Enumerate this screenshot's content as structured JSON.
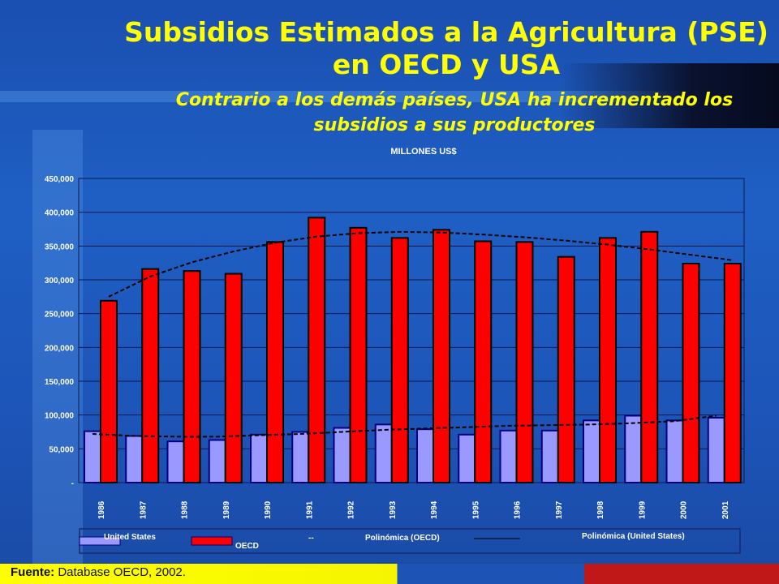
{
  "slide": {
    "title_line1": "Subsidios Estimados a la Agricultura (PSE)",
    "title_line2": "en OECD y USA",
    "subtitle_line1": "Contrario a los demás países, USA ha incrementado los",
    "subtitle_line2": "subsidios a sus productores",
    "source_label": "Fuente:",
    "source_text": " Database OECD, 2002."
  },
  "colors": {
    "us_bar": "#9999ff",
    "oecd_bar": "#ff0000",
    "bar_outline": "#000080",
    "trend_line": "#000000",
    "title": "#ffff00"
  },
  "chart_data": {
    "type": "bar",
    "title": "MILLONES US$",
    "xlabel": "",
    "ylabel": "",
    "categories": [
      "1986",
      "1987",
      "1988",
      "1989",
      "1990",
      "1991",
      "1992",
      "1993",
      "1994",
      "1995",
      "1996",
      "1997",
      "1998",
      "1999",
      "2000",
      "2001"
    ],
    "series": [
      {
        "name": "United States",
        "values": [
          76000,
          69000,
          61000,
          63000,
          71000,
          75000,
          81000,
          86000,
          79000,
          71000,
          77000,
          77000,
          92000,
          99000,
          92000,
          96000
        ]
      },
      {
        "name": "OECD",
        "values": [
          269000,
          316000,
          313000,
          309000,
          356000,
          392000,
          377000,
          362000,
          374000,
          357000,
          356000,
          334000,
          362000,
          371000,
          324000,
          324000
        ]
      }
    ],
    "trendlines": [
      {
        "name": "Polinómica (OECD)",
        "values": [
          275000,
          305000,
          326000,
          342000,
          355000,
          364000,
          369000,
          371000,
          370000,
          367000,
          363000,
          358000,
          352000,
          345000,
          337000,
          329000
        ]
      },
      {
        "name": "Polinómica (United States)",
        "values": [
          72000,
          69000,
          68000,
          68000,
          70000,
          72000,
          75000,
          78000,
          80000,
          82000,
          84000,
          85000,
          86000,
          88000,
          91000,
          99000
        ]
      }
    ],
    "ylim": [
      0,
      450000
    ],
    "yticks": [
      {
        "value": 0,
        "label": "-"
      },
      {
        "value": 50000,
        "label": "50,000"
      },
      {
        "value": 100000,
        "label": "100,000"
      },
      {
        "value": 150000,
        "label": "150,000"
      },
      {
        "value": 200000,
        "label": "200,000"
      },
      {
        "value": 250000,
        "label": "250,000"
      },
      {
        "value": 300000,
        "label": "300,000"
      },
      {
        "value": 350000,
        "label": "350,000"
      },
      {
        "value": 400000,
        "label": "400,000"
      },
      {
        "value": 450000,
        "label": "450,000"
      }
    ],
    "grid": true,
    "legend_position": "bottom",
    "legend": {
      "us": "United States",
      "oecd": "OECD",
      "poly_oecd": "Polinómica (OECD)",
      "poly_us": "Polinómica (United States)",
      "dash_marker": "--"
    }
  }
}
